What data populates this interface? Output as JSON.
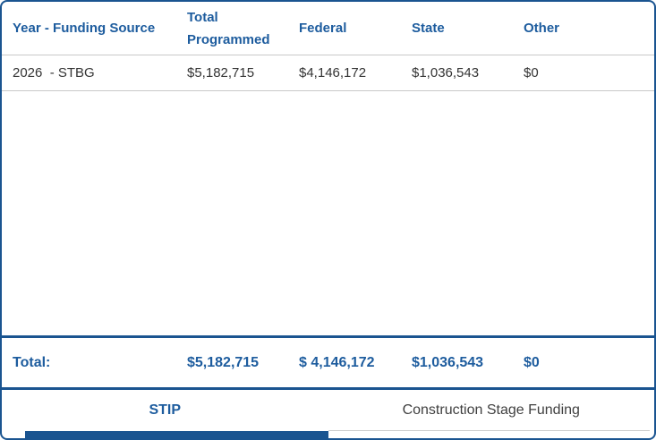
{
  "colors": {
    "accent_blue": "#1A5490",
    "header_text_blue": "#1D5C9E",
    "row_text": "#333333",
    "divider_gray": "#C9C9C9",
    "inactive_tab_text": "#404040"
  },
  "table": {
    "columns": [
      {
        "label": "Year - Funding Source"
      },
      {
        "label": "Total Programmed"
      },
      {
        "label": "Federal"
      },
      {
        "label": "State"
      },
      {
        "label": "Other"
      }
    ],
    "rows": [
      {
        "year_funding_source": "2026  - STBG",
        "total_programmed": "$5,182,715",
        "federal": "$4,146,172",
        "state": "$1,036,543",
        "other": "$0"
      }
    ],
    "total": {
      "label": "Total:",
      "total_programmed": "$5,182,715",
      "federal": "$ 4,146,172",
      "state": "$1,036,543",
      "other": "$0"
    }
  },
  "tabs": [
    {
      "label": "STIP",
      "active": true
    },
    {
      "label": "Construction Stage Funding",
      "active": false
    }
  ]
}
